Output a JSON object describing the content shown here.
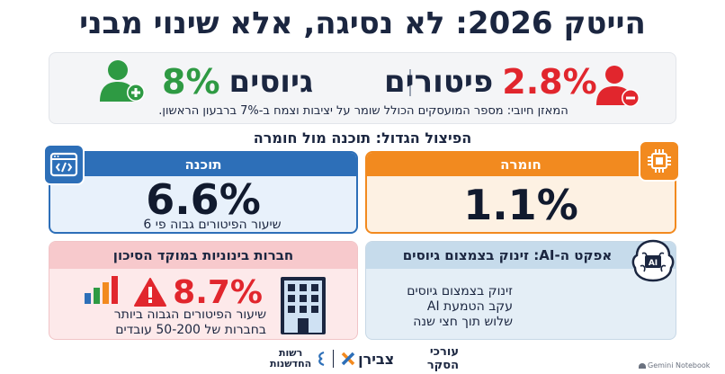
{
  "title": "הייטק 2026: לא נסיגה, אלא שינוי מבני",
  "summary": {
    "layoffs": {
      "value": "2.8%",
      "label": "פיטורים",
      "color": "#e1262d"
    },
    "hires": {
      "value": "8%",
      "label": "גיוסים",
      "color": "#2e9a43"
    },
    "note": "המאזן חיובי: מספר המועסקים הכולל שומר על יציבות וצמח ב-7% ברבעון הראשון."
  },
  "section_heading": "הפיצול הגדול: תוכנה מול חומרה",
  "software": {
    "header": "תוכנה",
    "value": "6.6%",
    "caption": "שיעור הפיטורים גבוה פי 6",
    "color": "#2d6fb8"
  },
  "hardware": {
    "header": "חומרה",
    "value": "1.1%",
    "color": "#f28a1f"
  },
  "midsize": {
    "header": "חברות בינוניות במוקד הסיכון",
    "value": "8.7%",
    "caption_line1": "שיעור הפיטורים הגבוה ביותר",
    "caption_line2": "בחברות של 50-200 עובדים",
    "color": "#e1262d"
  },
  "ai": {
    "header": "אפקט ה-AI: זינוק בצמצום גיוסים",
    "line1": "זינוק בצמצום גיוסים",
    "line2": "עקב הטמעת AI",
    "line3": "שלוש תוך חצי שנה",
    "chip_text": "AI"
  },
  "footer": {
    "prefix": "עורכי הסקר",
    "brand1": "צבירן",
    "brand2_line1": "רשות",
    "brand2_line2": "החדשנות",
    "watermark": "Gemini Notebook"
  },
  "icons": {
    "hires": "user-plus-icon",
    "layoffs": "user-minus-icon",
    "software": "code-window-icon",
    "hardware": "chip-icon",
    "warning": "warning-icon",
    "bars": "bar-chart-icon",
    "building": "office-building-icon",
    "ai": "ai-brain-icon"
  }
}
